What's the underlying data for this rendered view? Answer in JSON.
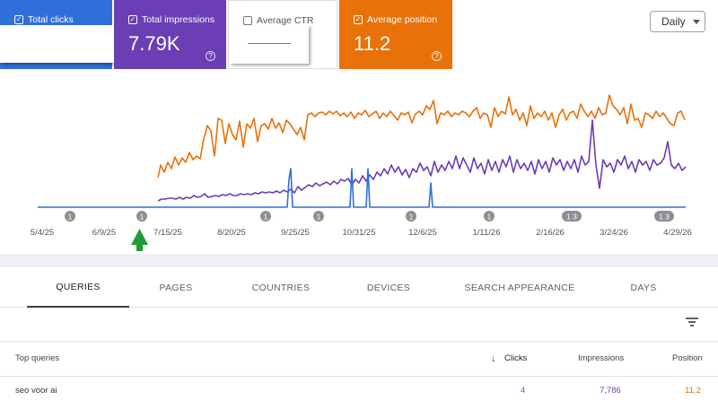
{
  "metrics": {
    "clicks": {
      "label": "Total clicks",
      "color": "#2f6fdb"
    },
    "impressions": {
      "label": "Total impressions",
      "value": "7.79K",
      "color": "#6a3fb5"
    },
    "ctr": {
      "label": "Average CTR"
    },
    "position": {
      "label": "Average position",
      "value": "11.2",
      "color": "#e8710a"
    },
    "help_glyph": "?"
  },
  "range_select": {
    "value": "Daily"
  },
  "chart": {
    "x_ticks": [
      "5/4/25",
      "6/9/25",
      "7/15/25",
      "8/20/25",
      "9/25/25",
      "10/31/25",
      "12/6/25",
      "1/11/26",
      "2/16/26",
      "3/24/26",
      "4/29/26"
    ],
    "annotation_markers": [
      "1",
      "1",
      "1",
      "1",
      "1",
      "1",
      "1",
      "1 3",
      "1"
    ]
  },
  "chart_data": {
    "type": "line",
    "x_ticks": [
      "5/4/25",
      "6/9/25",
      "7/15/25",
      "8/20/25",
      "9/25/25",
      "10/31/25",
      "12/6/25",
      "1/11/26",
      "2/16/26",
      "3/24/26",
      "4/29/26"
    ],
    "series": [
      {
        "color": "#2f6fdb",
        "note": "clicks near zero with occasional spikes (~late Sep, early Nov, mid Dec)"
      },
      {
        "color": "#6a3fb5",
        "note": "impressions rising from ~Jul 2025 onward"
      },
      {
        "color": "#e8710a",
        "note": "position data starting ~Jul 2025"
      }
    ],
    "grid": false
  },
  "tabs": [
    "QUERIES",
    "PAGES",
    "COUNTRIES",
    "DEVICES",
    "SEARCH APPEARANCE",
    "DAYS"
  ],
  "table": {
    "headers": {
      "query": "Top queries",
      "clicks": "Clicks",
      "sort_arrow": "↓",
      "impressions": "Impressions",
      "position": "Position"
    },
    "rows": [
      {
        "query": "seo voor ai",
        "clicks": "4",
        "impressions": "7,786",
        "position": "11.2"
      }
    ]
  },
  "annotation_arrow_color": "#1e9e3a"
}
